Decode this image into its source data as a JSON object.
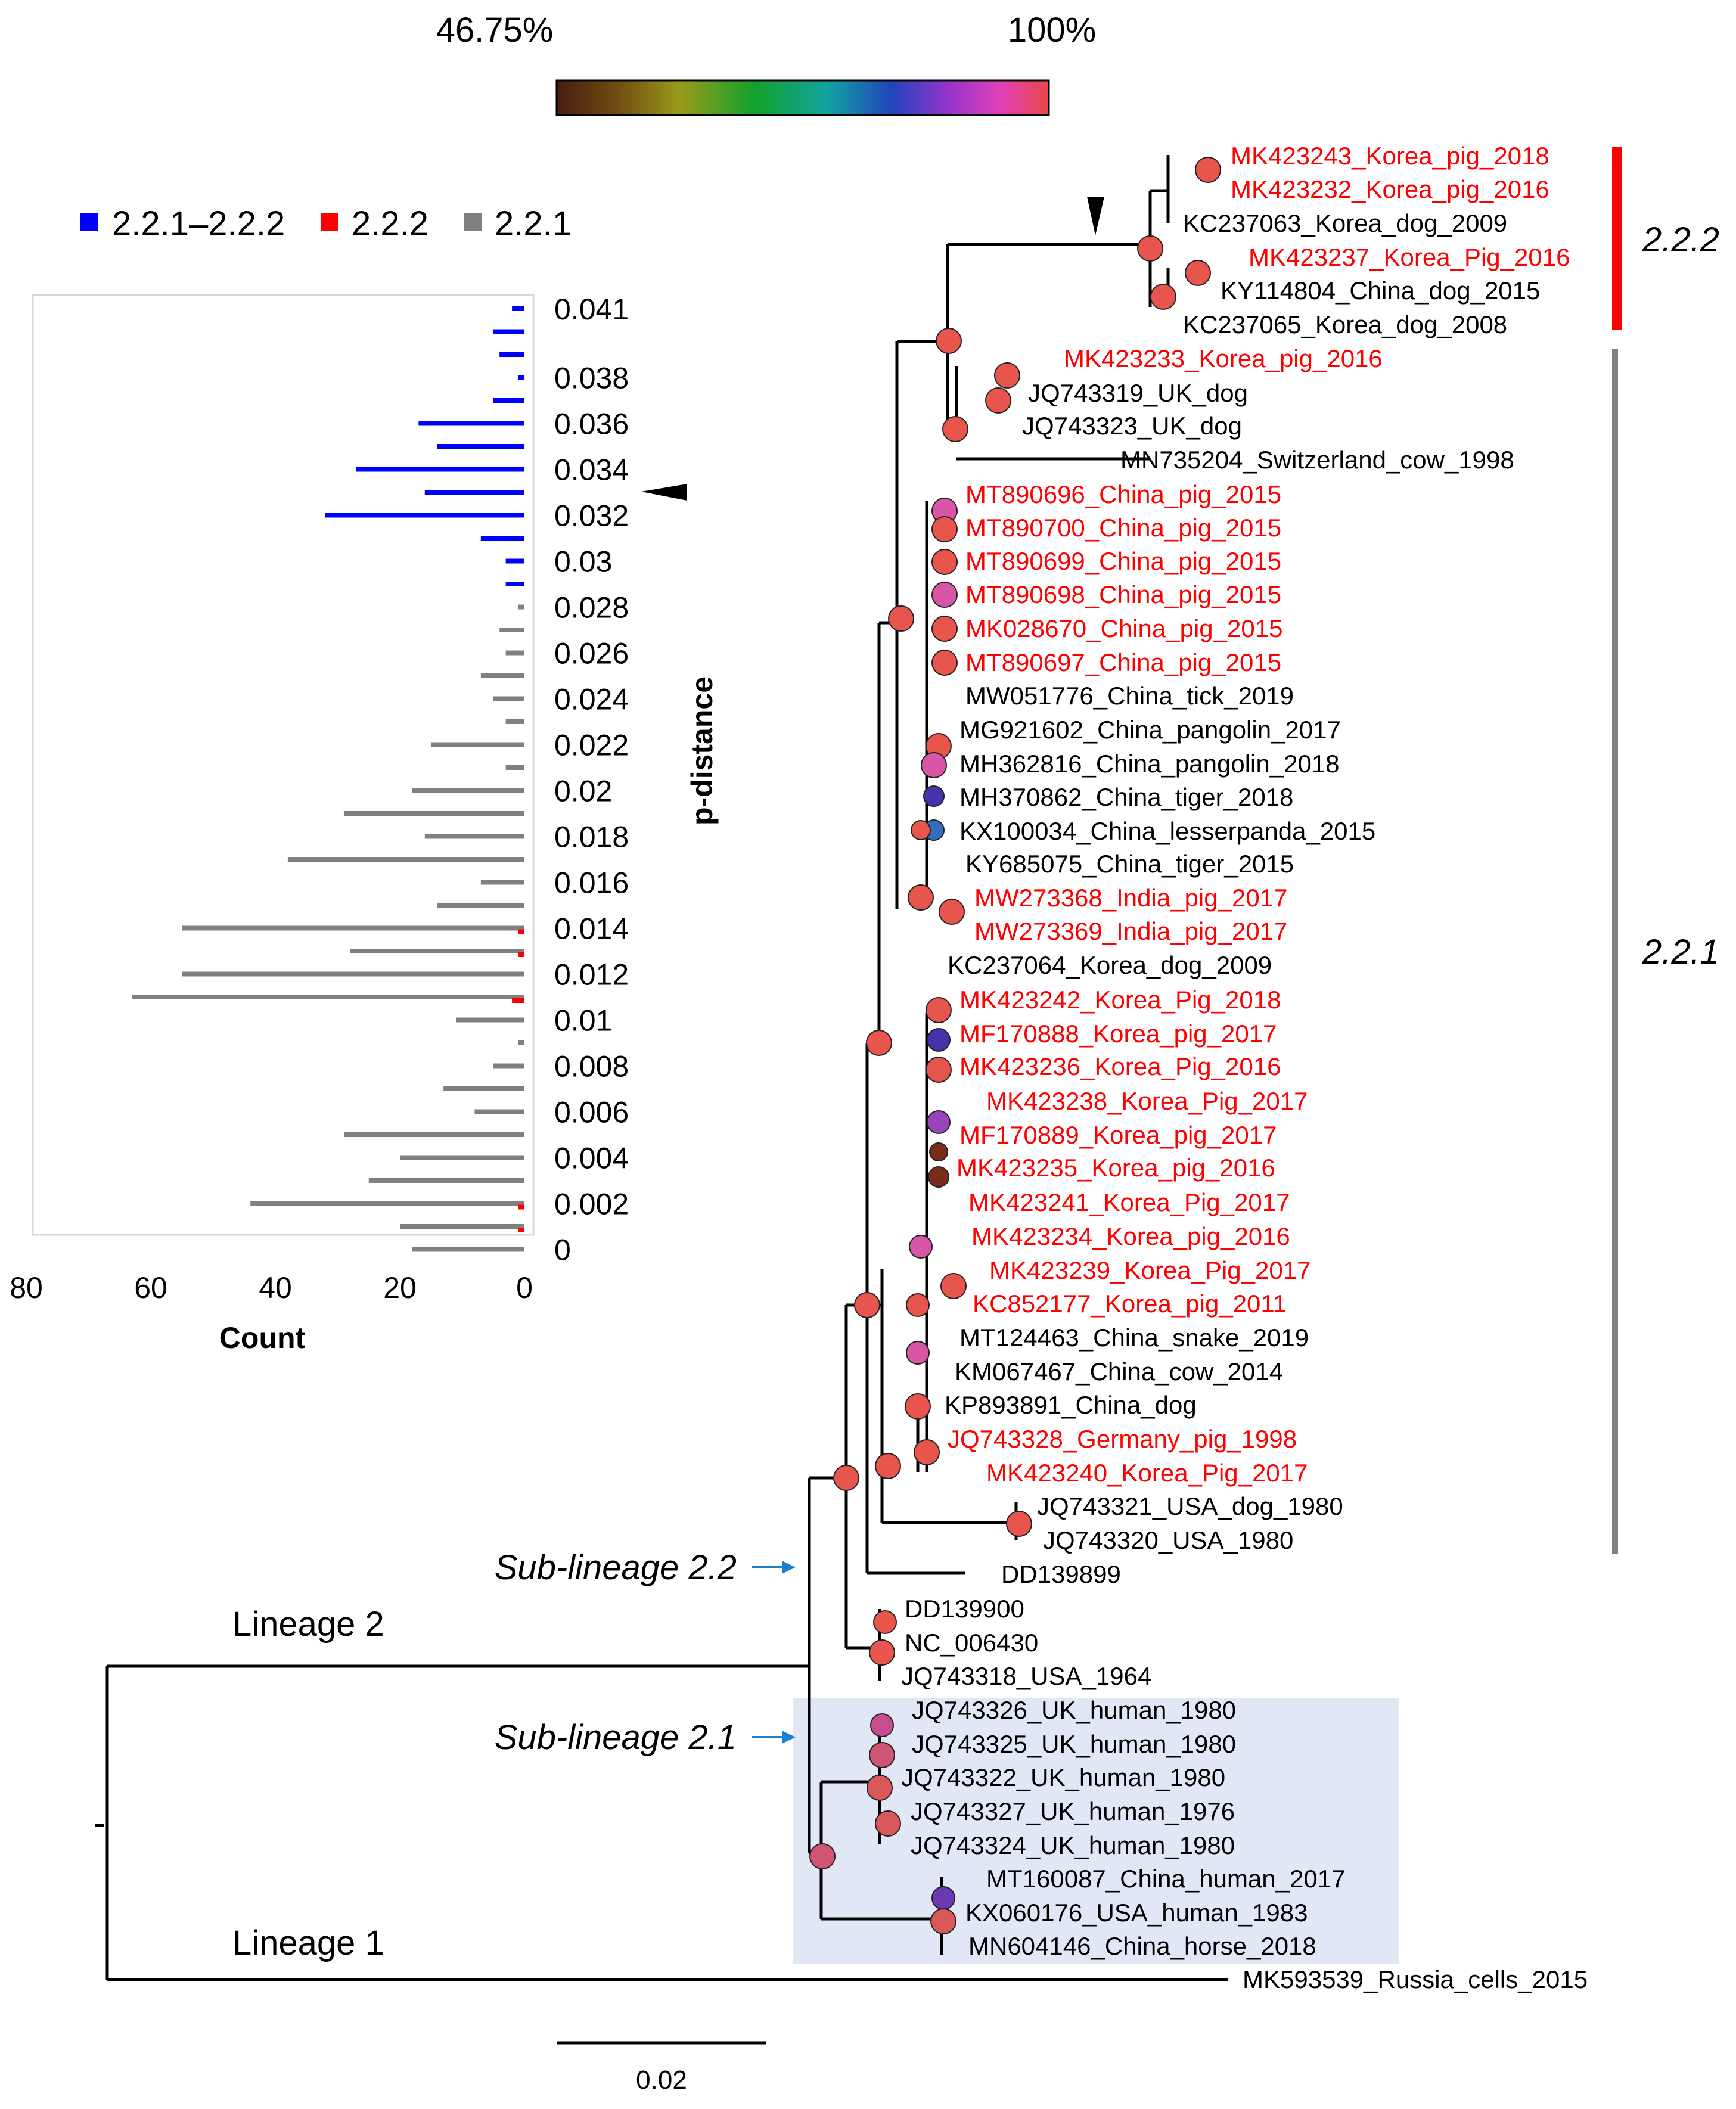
{
  "color_scale": {
    "min_label": "46.75%",
    "max_label": "100%"
  },
  "tree": {
    "lineage_labels": [
      {
        "text": "Lineage 2"
      },
      {
        "text": "Lineage 1"
      }
    ],
    "sublineage_labels": [
      {
        "text": "Sub-lineage 2.2"
      },
      {
        "text": "Sub-lineage 2.1"
      }
    ],
    "clade_labels": [
      {
        "text": "2.2.2"
      },
      {
        "text": "2.2.1"
      }
    ],
    "scale_bar_label": "0.02",
    "leaves": [
      {
        "name": "MK423243_Korea_pig_2018",
        "color": "#ff0000"
      },
      {
        "name": "MK423232_Korea_pig_2016",
        "color": "#ff0000"
      },
      {
        "name": "KC237063_Korea_dog_2009",
        "color": "#000000"
      },
      {
        "name": "MK423237_Korea_Pig_2016",
        "color": "#ff0000"
      },
      {
        "name": "KY114804_China_dog_2015",
        "color": "#000000"
      },
      {
        "name": "KC237065_Korea_dog_2008",
        "color": "#000000"
      },
      {
        "name": "MK423233_Korea_pig_2016",
        "color": "#ff0000"
      },
      {
        "name": "JQ743319_UK_dog",
        "color": "#000000"
      },
      {
        "name": "JQ743323_UK_dog",
        "color": "#000000"
      },
      {
        "name": "MN735204_Switzerland_cow_1998",
        "color": "#000000"
      },
      {
        "name": "MT890696_China_pig_2015",
        "color": "#ff0000"
      },
      {
        "name": "MT890700_China_pig_2015",
        "color": "#ff0000"
      },
      {
        "name": "MT890699_China_pig_2015",
        "color": "#ff0000"
      },
      {
        "name": "MT890698_China_pig_2015",
        "color": "#ff0000"
      },
      {
        "name": "MK028670_China_pig_2015",
        "color": "#ff0000"
      },
      {
        "name": "MT890697_China_pig_2015",
        "color": "#ff0000"
      },
      {
        "name": "MW051776_China_tick_2019",
        "color": "#000000"
      },
      {
        "name": "MG921602_China_pangolin_2017",
        "color": "#000000"
      },
      {
        "name": "MH362816_China_pangolin_2018",
        "color": "#000000"
      },
      {
        "name": "MH370862_China_tiger_2018",
        "color": "#000000"
      },
      {
        "name": "KX100034_China_lesserpanda_2015",
        "color": "#000000"
      },
      {
        "name": "KY685075_China_tiger_2015",
        "color": "#000000"
      },
      {
        "name": "MW273368_India_pig_2017",
        "color": "#ff0000"
      },
      {
        "name": "MW273369_India_pig_2017",
        "color": "#ff0000"
      },
      {
        "name": "KC237064_Korea_dog_2009",
        "color": "#000000"
      },
      {
        "name": "MK423242_Korea_Pig_2018",
        "color": "#ff0000"
      },
      {
        "name": "MF170888_Korea_pig_2017",
        "color": "#ff0000"
      },
      {
        "name": "MK423236_Korea_Pig_2016",
        "color": "#ff0000"
      },
      {
        "name": "MK423238_Korea_Pig_2017",
        "color": "#ff0000"
      },
      {
        "name": "MF170889_Korea_pig_2017",
        "color": "#ff0000"
      },
      {
        "name": "MK423235_Korea_pig_2016",
        "color": "#ff0000"
      },
      {
        "name": "MK423241_Korea_Pig_2017",
        "color": "#ff0000"
      },
      {
        "name": "MK423234_Korea_pig_2016",
        "color": "#ff0000"
      },
      {
        "name": "MK423239_Korea_Pig_2017",
        "color": "#ff0000"
      },
      {
        "name": "KC852177_Korea_pig_2011",
        "color": "#ff0000"
      },
      {
        "name": "MT124463_China_snake_2019",
        "color": "#000000"
      },
      {
        "name": "KM067467_China_cow_2014",
        "color": "#000000"
      },
      {
        "name": "KP893891_China_dog",
        "color": "#000000"
      },
      {
        "name": "JQ743328_Germany_pig_1998",
        "color": "#ff0000"
      },
      {
        "name": "MK423240_Korea_Pig_2017",
        "color": "#ff0000"
      },
      {
        "name": "JQ743321_USA_dog_1980",
        "color": "#000000"
      },
      {
        "name": "JQ743320_USA_1980",
        "color": "#000000"
      },
      {
        "name": "DD139899",
        "color": "#000000"
      },
      {
        "name": "DD139900",
        "color": "#000000"
      },
      {
        "name": "NC_006430",
        "color": "#000000"
      },
      {
        "name": "JQ743318_USA_1964",
        "color": "#000000"
      },
      {
        "name": "JQ743326_UK_human_1980",
        "color": "#000000"
      },
      {
        "name": "JQ743325_UK_human_1980",
        "color": "#000000"
      },
      {
        "name": "JQ743322_UK_human_1980",
        "color": "#000000"
      },
      {
        "name": "JQ743327_UK_human_1976",
        "color": "#000000"
      },
      {
        "name": "JQ743324_UK_human_1980",
        "color": "#000000"
      },
      {
        "name": "MT160087_China_human_2017",
        "color": "#000000"
      },
      {
        "name": "KX060176_USA_human_1983",
        "color": "#000000"
      },
      {
        "name": "MN604146_China_horse_2018",
        "color": "#000000"
      },
      {
        "name": "MK593539_Russia_cells_2015",
        "color": "#000000"
      }
    ]
  },
  "chart_data": {
    "type": "bar",
    "orientation": "horizontal",
    "title": "",
    "xlabel": "Count",
    "ylabel": "p-distance",
    "xlim": [
      80,
      0
    ],
    "x_ticks": [
      "80",
      "60",
      "40",
      "20",
      "0"
    ],
    "y_tick_labels": [
      "0.041",
      "0.038",
      "0.036",
      "0.034",
      "0.032",
      "0.03",
      "0.028",
      "0.026",
      "0.024",
      "0.022",
      "0.02",
      "0.018",
      "0.016",
      "0.014",
      "0.012",
      "0.01",
      "0.008",
      "0.006",
      "0.004",
      "0.002",
      "0"
    ],
    "legend": [
      "2.2.1–2.2.2",
      "2.2.2",
      "2.2.1"
    ],
    "series_colors": {
      "2.2.1–2.2.2": "#0000ff",
      "2.2.2": "#ff0000",
      "2.2.1": "#808080"
    },
    "bins": [
      {
        "bin": 41,
        "series": "2.2.1–2.2.2",
        "count": 2
      },
      {
        "bin": 40,
        "series": "2.2.1–2.2.2",
        "count": 5
      },
      {
        "bin": 39,
        "series": "2.2.1–2.2.2",
        "count": 4
      },
      {
        "bin": 38,
        "series": "2.2.1–2.2.2",
        "count": 1
      },
      {
        "bin": 37,
        "series": "2.2.1–2.2.2",
        "count": 5
      },
      {
        "bin": 36,
        "series": "2.2.1–2.2.2",
        "count": 17
      },
      {
        "bin": 35,
        "series": "2.2.1–2.2.2",
        "count": 14
      },
      {
        "bin": 34,
        "series": "2.2.1–2.2.2",
        "count": 27
      },
      {
        "bin": 33,
        "series": "2.2.1–2.2.2",
        "count": 16
      },
      {
        "bin": 32,
        "series": "2.2.1–2.2.2",
        "count": 32
      },
      {
        "bin": 31,
        "series": "2.2.1",
        "count": 1
      },
      {
        "bin": 31,
        "series": "2.2.1–2.2.2",
        "count": 7
      },
      {
        "bin": 30,
        "series": "2.2.1–2.2.2",
        "count": 3
      },
      {
        "bin": 29,
        "series": "2.2.1–2.2.2",
        "count": 3
      },
      {
        "bin": 28,
        "series": "2.2.1",
        "count": 1
      },
      {
        "bin": 27,
        "series": "2.2.1",
        "count": 4
      },
      {
        "bin": 26,
        "series": "2.2.1",
        "count": 3
      },
      {
        "bin": 25,
        "series": "2.2.1",
        "count": 7
      },
      {
        "bin": 24,
        "series": "2.2.1",
        "count": 5
      },
      {
        "bin": 23,
        "series": "2.2.1",
        "count": 3
      },
      {
        "bin": 22,
        "series": "2.2.1",
        "count": 15
      },
      {
        "bin": 21,
        "series": "2.2.1",
        "count": 3
      },
      {
        "bin": 20,
        "series": "2.2.1",
        "count": 18
      },
      {
        "bin": 19,
        "series": "2.2.1",
        "count": 29
      },
      {
        "bin": 18,
        "series": "2.2.1",
        "count": 16
      },
      {
        "bin": 17,
        "series": "2.2.1",
        "count": 38
      },
      {
        "bin": 16,
        "series": "2.2.1",
        "count": 7
      },
      {
        "bin": 15,
        "series": "2.2.1",
        "count": 14
      },
      {
        "bin": 14,
        "series": "2.2.1",
        "count": 55
      },
      {
        "bin": 14,
        "series": "2.2.2",
        "count": 1
      },
      {
        "bin": 13,
        "series": "2.2.1",
        "count": 28
      },
      {
        "bin": 13,
        "series": "2.2.2",
        "count": 1
      },
      {
        "bin": 12,
        "series": "2.2.1",
        "count": 55
      },
      {
        "bin": 11,
        "series": "2.2.1",
        "count": 63
      },
      {
        "bin": 11,
        "series": "2.2.2",
        "count": 2
      },
      {
        "bin": 10,
        "series": "2.2.1",
        "count": 11
      },
      {
        "bin": 9,
        "series": "2.2.1",
        "count": 1
      },
      {
        "bin": 8,
        "series": "2.2.1",
        "count": 5
      },
      {
        "bin": 7,
        "series": "2.2.1",
        "count": 13
      },
      {
        "bin": 6,
        "series": "2.2.1",
        "count": 8
      },
      {
        "bin": 5,
        "series": "2.2.1",
        "count": 29
      },
      {
        "bin": 4,
        "series": "2.2.1",
        "count": 20
      },
      {
        "bin": 3,
        "series": "2.2.1",
        "count": 25
      },
      {
        "bin": 2,
        "series": "2.2.1",
        "count": 44
      },
      {
        "bin": 2,
        "series": "2.2.2",
        "count": 1
      },
      {
        "bin": 1,
        "series": "2.2.1",
        "count": 20
      },
      {
        "bin": 1,
        "series": "2.2.2",
        "count": 1
      },
      {
        "bin": 0,
        "series": "2.2.1",
        "count": 18
      }
    ]
  }
}
